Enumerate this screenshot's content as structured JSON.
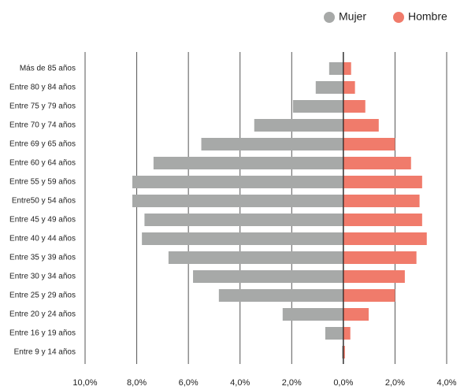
{
  "chart_data": {
    "type": "pyramid",
    "categories": [
      "Más de 85 años",
      "Entre 80 y 84 años",
      "Entre 75 y 79 años",
      "Entre 70 y 74 años",
      "Entre 69 y 65 años",
      "Entre 60 y 64 años",
      "Entre 55 y 59 años",
      "Entre50 y 54 años",
      "Entre 45 y 49 años",
      "Entre 40 y 44 años",
      "Entre 35 y 39 años",
      "Entre 30 y 34 años",
      "Entre 25 y 29 años",
      "Entre 20 y 24 años",
      "Entre 16 y 19 años",
      "Entre 9 y 14 años"
    ],
    "series": [
      {
        "name": "Mujer",
        "color": "#a7a9a8",
        "values": [
          -0.55,
          -1.07,
          -1.95,
          -3.45,
          -5.5,
          -7.35,
          -8.17,
          -8.17,
          -7.7,
          -7.8,
          -6.77,
          -5.82,
          -4.82,
          -2.35,
          -0.7,
          -0.05
        ]
      },
      {
        "name": "Hombre",
        "color": "#f07b6b",
        "values": [
          0.3,
          0.45,
          0.85,
          1.37,
          2.0,
          2.62,
          3.05,
          2.95,
          3.05,
          3.23,
          2.83,
          2.38,
          2.0,
          0.98,
          0.27,
          0.06
        ]
      }
    ],
    "xlim": [
      -10,
      4
    ],
    "xticks": [
      {
        "value": -10,
        "label": "10,0%"
      },
      {
        "value": -8,
        "label": "8,0%"
      },
      {
        "value": -6,
        "label": "6,0%"
      },
      {
        "value": -4,
        "label": "4,0%"
      },
      {
        "value": -2,
        "label": "2,0%"
      },
      {
        "value": 0,
        "label": "0,0%"
      },
      {
        "value": 2,
        "label": "2,0%"
      },
      {
        "value": 4,
        "label": "4,0%"
      }
    ],
    "grid": true,
    "legend": "top-right"
  }
}
